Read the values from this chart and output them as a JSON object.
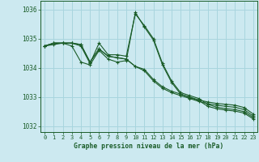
{
  "background_color": "#cce9f0",
  "grid_color": "#a8d5de",
  "line_color": "#1a5c28",
  "title": "Graphe pression niveau de la mer (hPa)",
  "xlim": [
    -0.5,
    23.5
  ],
  "ylim": [
    1031.8,
    1036.3
  ],
  "yticks": [
    1032,
    1033,
    1034,
    1035,
    1036
  ],
  "xticks": [
    0,
    1,
    2,
    3,
    4,
    5,
    6,
    7,
    8,
    9,
    10,
    11,
    12,
    13,
    14,
    15,
    16,
    17,
    18,
    19,
    20,
    21,
    22,
    23
  ],
  "series": [
    [
      1034.75,
      1034.85,
      1034.85,
      1034.85,
      1034.8,
      1034.2,
      1034.65,
      1034.4,
      1034.35,
      1034.3,
      1034.05,
      1033.95,
      1033.6,
      1033.35,
      1033.2,
      1033.1,
      1033.0,
      1032.9,
      1032.83,
      1032.78,
      1032.75,
      1032.72,
      1032.64,
      1032.42
    ],
    [
      1034.75,
      1034.85,
      1034.85,
      1034.85,
      1034.8,
      1034.2,
      1034.65,
      1034.4,
      1034.35,
      1034.3,
      1034.05,
      1033.9,
      1033.55,
      1033.3,
      1033.15,
      1033.05,
      1032.95,
      1032.85,
      1032.77,
      1032.72,
      1032.68,
      1032.65,
      1032.57,
      1032.35
    ],
    [
      1034.75,
      1034.85,
      1034.85,
      1034.85,
      1034.75,
      1034.15,
      1034.85,
      1034.45,
      1034.45,
      1034.4,
      1035.85,
      1035.45,
      1035.0,
      1034.15,
      1033.55,
      1033.15,
      1033.05,
      1032.95,
      1032.75,
      1032.65,
      1032.6,
      1032.57,
      1032.5,
      1032.3
    ],
    [
      1034.75,
      1034.8,
      1034.85,
      1034.75,
      1034.2,
      1034.1,
      1034.6,
      1034.3,
      1034.2,
      1034.25,
      1035.9,
      1035.4,
      1034.95,
      1034.1,
      1033.5,
      1033.1,
      1032.98,
      1032.88,
      1032.68,
      1032.6,
      1032.55,
      1032.52,
      1032.45,
      1032.25
    ]
  ]
}
